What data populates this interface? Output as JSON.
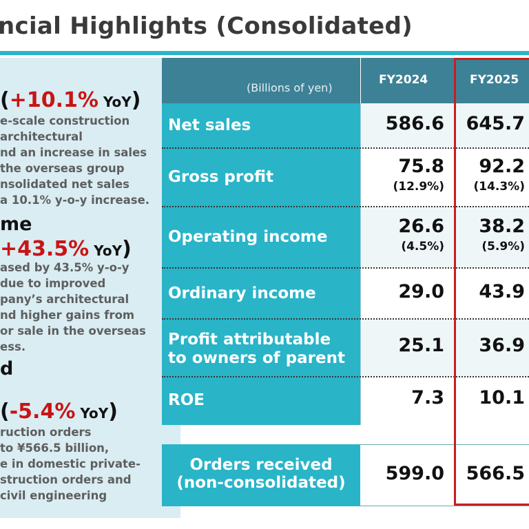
{
  "page": {
    "title": "ncial Highlights (Consolidated)"
  },
  "left_panel": {
    "sales": {
      "yoy_open": "(",
      "yoy_value": "+10.1%",
      "yoy_suffix": " YoY",
      "yoy_close": ")",
      "lines": [
        "e-scale construction",
        "architectural",
        "nd an increase in sales",
        "the overseas group",
        "nsolidated net sales",
        "a 10.1% y-o-y increase."
      ]
    },
    "income": {
      "heading": "me",
      "yoy_value": "+43.5%",
      "yoy_suffix": " YoY",
      "yoy_close": ")",
      "lines": [
        "ased by 43.5% y-o-y",
        "due to improved",
        "pany’s architectural",
        "nd higher gains from",
        "or sale in the overseas",
        "ess."
      ]
    },
    "orders": {
      "heading": "d",
      "yoy_open": "(",
      "yoy_value": "-5.4%",
      "yoy_suffix": " YoY",
      "yoy_close": ")",
      "lines": [
        "ruction orders",
        "to ¥566.5 billion,",
        "e in domestic private-",
        "struction orders and",
        "civil engineering"
      ]
    }
  },
  "table": {
    "unit_label": "(Billions of yen)",
    "columns": [
      "FY2024",
      "FY2025"
    ],
    "rows": [
      {
        "label": "Net sales",
        "fy2024": "586.6",
        "fy2025": "645.7"
      },
      {
        "label": "Gross profit",
        "fy2024": "75.8",
        "fy2024_pct": "(12.9%)",
        "fy2025": "92.2",
        "fy2025_pct": "(14.3%)"
      },
      {
        "label": "Operating income",
        "fy2024": "26.6",
        "fy2024_pct": "(4.5%)",
        "fy2025": "38.2",
        "fy2025_pct": "(5.9%)"
      },
      {
        "label": "Ordinary income",
        "fy2024": "29.0",
        "fy2025": "43.9"
      },
      {
        "label_line1": "Profit attributable",
        "label_line2": "to owners of parent",
        "fy2024": "25.1",
        "fy2025": "36.9"
      },
      {
        "label": "ROE",
        "fy2024": "7.3",
        "fy2025": "10.1"
      }
    ],
    "orders": {
      "label_line1": "Orders received",
      "label_line2": "(non-consolidated)",
      "fy2024": "599.0",
      "fy2025": "566.5"
    }
  },
  "colors": {
    "accent": "#29b4c8",
    "header_band": "#3d8196",
    "highlight_red": "#c81414",
    "left_panel_bg": "#d9edf3"
  }
}
